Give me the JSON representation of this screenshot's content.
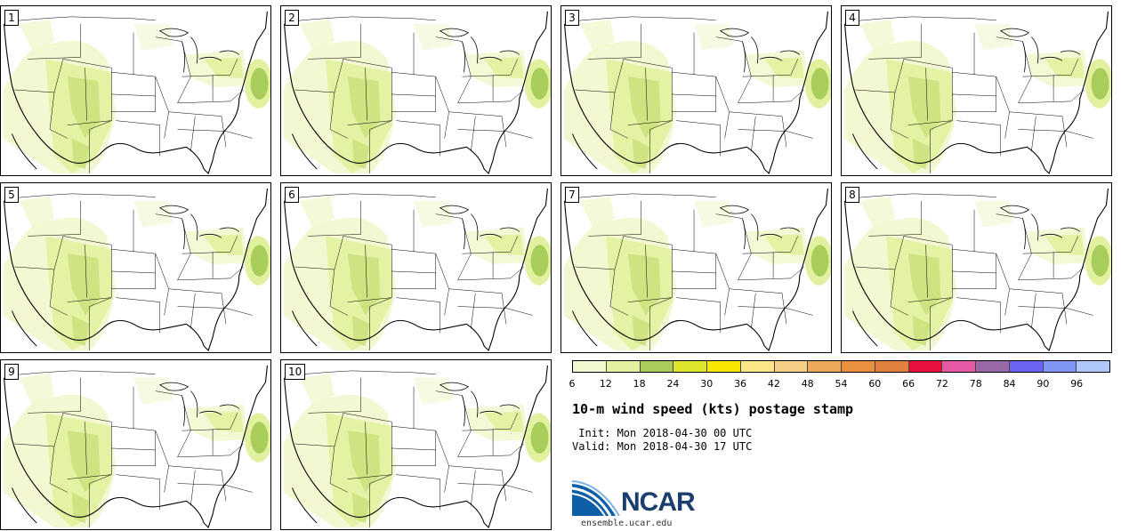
{
  "title": "10-m wind speed (kts) postage stamp",
  "init": " Init: Mon 2018-04-30 00 UTC",
  "valid": "Valid: Mon 2018-04-30 17 UTC",
  "site": "ensemble.ucar.edu",
  "logo_text": "NCAR",
  "members": [
    "1",
    "2",
    "3",
    "4",
    "5",
    "6",
    "7",
    "8",
    "9",
    "10"
  ],
  "colorbar": {
    "ticks": [
      "6",
      "12",
      "18",
      "24",
      "30",
      "36",
      "42",
      "48",
      "54",
      "60",
      "66",
      "72",
      "78",
      "84",
      "90",
      "96"
    ],
    "colors": [
      "#f2f7d0",
      "#e2f19f",
      "#a8cd5a",
      "#dde62a",
      "#f8e800",
      "#fbe586",
      "#f5cf85",
      "#eca95a",
      "#e8903e",
      "#e0813f",
      "#e8103c",
      "#e55aa2",
      "#9a67a7",
      "#6a63f3",
      "#7f96f7",
      "#b0c7fb"
    ]
  }
}
